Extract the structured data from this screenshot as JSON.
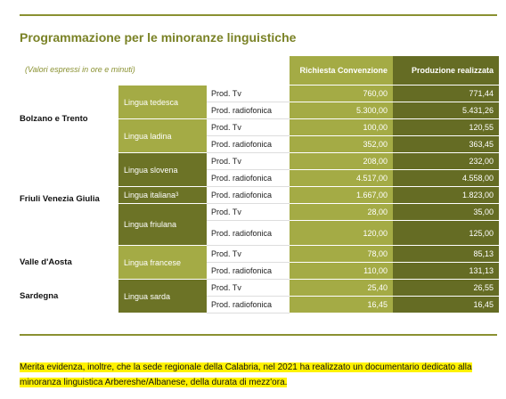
{
  "header": {
    "title": "Programmazione per le minoranze linguistiche",
    "subtitle": "(Valori espressi in ore e minuti)"
  },
  "table": {
    "columns": [
      "Richiesta Convenzione",
      "Produzione realizzata"
    ],
    "groups": [
      {
        "region": "Bolzano e Trento",
        "languages": [
          {
            "name": "Lingua tedesca",
            "rows": [
              [
                "Prod. Tv",
                "760,00",
                "771,44"
              ],
              [
                "Prod. radiofonica",
                "5.300,00",
                "5.431,26"
              ]
            ]
          },
          {
            "name": "Lingua ladina",
            "rows": [
              [
                "Prod. Tv",
                "100,00",
                "120,55"
              ],
              [
                "Prod. radiofonica",
                "352,00",
                "363,45"
              ]
            ]
          }
        ]
      },
      {
        "region": "Friuli Venezia Giulia",
        "languages": [
          {
            "name": "Lingua slovena",
            "rows": [
              [
                "Prod. Tv",
                "208,00",
                "232,00"
              ],
              [
                "Prod. radiofonica",
                "4.517,00",
                "4.558,00"
              ]
            ]
          },
          {
            "name": "Lingua italiana",
            "note": "3",
            "rows": [
              [
                "Prod. radiofonica",
                "1.667,00",
                "1.823,00"
              ]
            ]
          },
          {
            "name": "Lingua friulana",
            "rows": [
              [
                "Prod. Tv",
                "28,00",
                "35,00"
              ],
              [
                "Prod. radiofonica",
                "120,00",
                "125,00"
              ]
            ]
          }
        ]
      },
      {
        "region": "Valle d'Aosta",
        "languages": [
          {
            "name": "Lingua francese",
            "rows": [
              [
                "Prod. Tv",
                "78,00",
                "85,13"
              ],
              [
                "Prod. radiofonica",
                "110,00",
                "131,13"
              ]
            ]
          }
        ]
      },
      {
        "region": "Sardegna",
        "languages": [
          {
            "name": "Lingua sarda",
            "rows": [
              [
                "Prod. Tv",
                "25,40",
                "26,55"
              ],
              [
                "Prod. radiofonica",
                "16,45",
                "16,45"
              ]
            ]
          }
        ]
      }
    ]
  },
  "footer": {
    "text": "Merita evidenza, inoltre, che la sede regionale della Calabria, nel 2021 ha realizzato un documentario dedicato alla minoranza linguistica Arbereshe/Albanese, della durata di mezz'ora."
  }
}
